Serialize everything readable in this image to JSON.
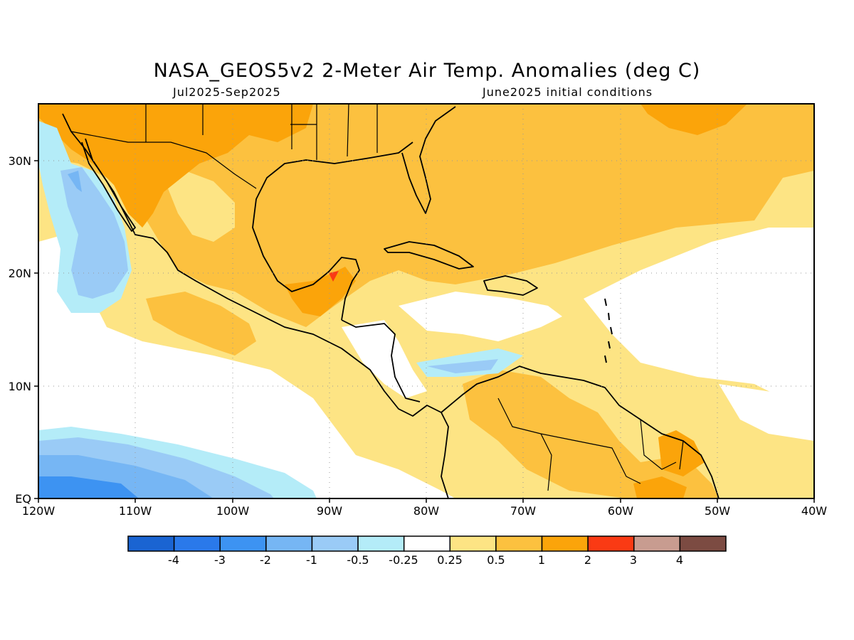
{
  "title": "NASA_GEOS5v2 2-Meter Air Temp. Anomalies (deg C)",
  "period": "Jul2025-Sep2025",
  "initial_conditions": "June2025 initial conditions",
  "map": {
    "lon_range": [
      -120,
      -40
    ],
    "lat_range": [
      0,
      35
    ],
    "lon_ticks": [
      "120W",
      "110W",
      "100W",
      "90W",
      "80W",
      "70W",
      "60W",
      "50W",
      "40W"
    ],
    "lat_ticks": [
      "EQ",
      "10N",
      "20N",
      "30N"
    ],
    "gridlines": "dotted"
  },
  "colorbar": {
    "colors": [
      "#1a64d2",
      "#2a79ea",
      "#3d93f2",
      "#76b6f4",
      "#9acbf6",
      "#b4ecf8",
      "#ffffff",
      "#fde484",
      "#fcc13f",
      "#fba40a",
      "#fa3a14",
      "#c89c90",
      "#7c4b42"
    ],
    "labels": [
      "-4",
      "-3",
      "-2",
      "-1",
      "-0.5",
      "-0.25",
      "0.25",
      "0.5",
      "1",
      "2",
      "3",
      "4"
    ]
  }
}
